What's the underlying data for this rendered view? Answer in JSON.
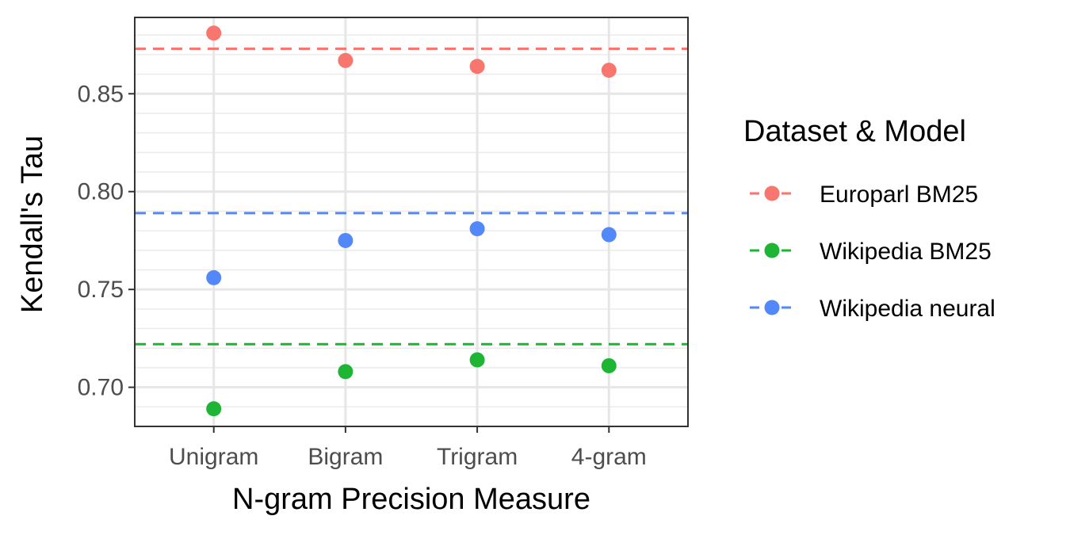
{
  "chart_data": {
    "type": "scatter",
    "title": "",
    "xlabel": "N-gram Precision Measure",
    "ylabel": "Kendall's Tau",
    "categories": [
      "Unigram",
      "Bigram",
      "Trigram",
      "4-gram"
    ],
    "ylim": [
      0.68,
      0.889
    ],
    "y_ticks": [
      0.7,
      0.75,
      0.8,
      0.85
    ],
    "y_tick_labels": [
      "0.70",
      "0.75",
      "0.80",
      "0.85"
    ],
    "grid": true,
    "legend": {
      "title": "Dataset & Model",
      "position": "right"
    },
    "series": [
      {
        "name": "Europarl BM25",
        "color": "#F8766D",
        "values": [
          0.881,
          0.867,
          0.864,
          0.862
        ],
        "baseline": 0.873
      },
      {
        "name": "Wikipedia BM25",
        "color": "#1EB534",
        "values": [
          0.689,
          0.708,
          0.714,
          0.711
        ],
        "baseline": 0.722
      },
      {
        "name": "Wikipedia neural",
        "color": "#5388FA",
        "values": [
          0.756,
          0.775,
          0.781,
          0.778
        ],
        "baseline": 0.789
      }
    ]
  }
}
